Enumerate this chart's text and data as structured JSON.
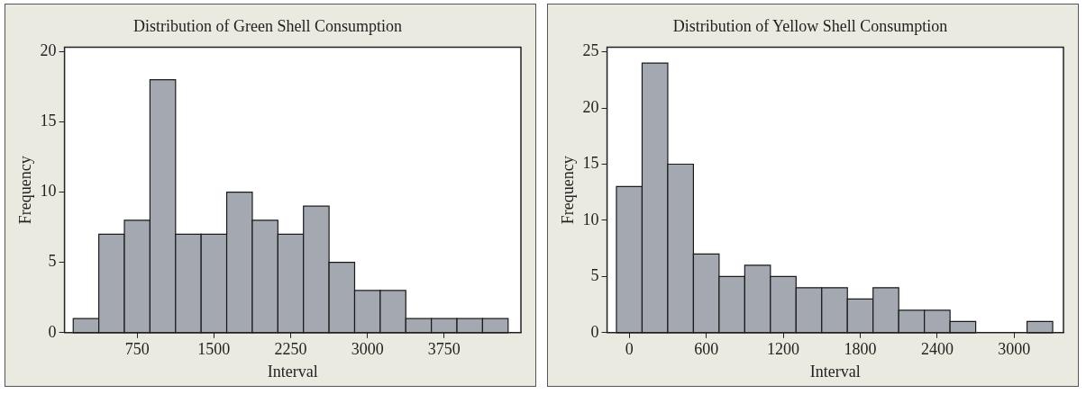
{
  "chart_data": [
    {
      "type": "histogram",
      "title": "Distribution of Green Shell Consumption",
      "xlabel": "Interval",
      "ylabel": "Frequency",
      "color": "#a3a8b1",
      "bins": [
        125,
        375,
        625,
        875,
        1125,
        1375,
        1625,
        1875,
        2125,
        2375,
        2625,
        2875,
        3125,
        3375,
        3625,
        3875,
        4125,
        4375
      ],
      "values": [
        1,
        7,
        8,
        18,
        7,
        7,
        10,
        8,
        7,
        9,
        5,
        3,
        3,
        1,
        1,
        1,
        1
      ],
      "xlim": [
        40,
        4500
      ],
      "xticks": [
        750,
        1500,
        2250,
        3000,
        3750
      ],
      "ylim": [
        0,
        20.3
      ],
      "yticks": [
        0,
        5,
        10,
        15,
        20
      ],
      "grid": false,
      "legend": false
    },
    {
      "type": "histogram",
      "title": "Distribution of Yellow Shell Consumption",
      "xlabel": "Interval",
      "ylabel": "Frequency",
      "color": "#a3a8b1",
      "bins": [
        -100,
        100,
        300,
        500,
        700,
        900,
        1100,
        1300,
        1500,
        1700,
        1900,
        2100,
        2300,
        2500,
        2700,
        2900,
        3100,
        3300
      ],
      "values": [
        13,
        24,
        15,
        7,
        5,
        6,
        5,
        4,
        4,
        3,
        4,
        2,
        2,
        1,
        0,
        0,
        1
      ],
      "xlim": [
        -173,
        3384
      ],
      "xticks": [
        0,
        600,
        1200,
        1800,
        2400,
        3000
      ],
      "ylim": [
        0,
        25.4
      ],
      "yticks": [
        0,
        5,
        10,
        15,
        20,
        25
      ],
      "grid": false,
      "legend": false
    }
  ]
}
